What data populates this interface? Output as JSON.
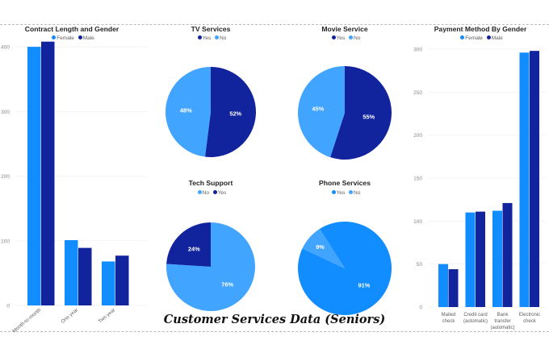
{
  "footer_title": "Customer Services Data (Seniors)",
  "colors": {
    "light": "#41a4ff",
    "dark": "#12239e",
    "mid": "#118dff",
    "accent": "#2ea3ff"
  },
  "charts": {
    "contract": {
      "title": "Contract Length and Gender",
      "legend": [
        "Female",
        "Male"
      ],
      "chart_data": {
        "type": "bar",
        "categories": [
          "Month-to-month",
          "One year",
          "Two year"
        ],
        "series": [
          {
            "name": "Female",
            "values": [
              400,
              101,
              68
            ]
          },
          {
            "name": "Male",
            "values": [
              408,
              89,
              77
            ]
          }
        ],
        "yticks": [
          "400",
          "300",
          "200",
          "100",
          "0"
        ],
        "ylim": [
          0,
          440
        ]
      }
    },
    "tv": {
      "title": "TV Services",
      "legend": [
        "Yes",
        "No"
      ],
      "chart_data": {
        "type": "pie",
        "labels": [
          "Yes",
          "No"
        ],
        "values": [
          52,
          48
        ],
        "value_labels": [
          "52%",
          "48%"
        ]
      }
    },
    "movie": {
      "title": "Movie Service",
      "legend": [
        "Yes",
        "No"
      ],
      "chart_data": {
        "type": "pie",
        "labels": [
          "Yes",
          "No"
        ],
        "values": [
          55,
          45
        ],
        "value_labels": [
          "55%",
          "45%"
        ]
      }
    },
    "tech": {
      "title": "Tech Support",
      "legend": [
        "No",
        "Yes"
      ],
      "chart_data": {
        "type": "pie",
        "labels": [
          "No",
          "Yes"
        ],
        "values": [
          76,
          24
        ],
        "value_labels": [
          "76%",
          "24%"
        ]
      }
    },
    "phone": {
      "title": "Phone Services",
      "legend": [
        "Yes",
        "No"
      ],
      "chart_data": {
        "type": "pie",
        "labels": [
          "Yes",
          "No"
        ],
        "values": [
          91,
          9
        ],
        "value_labels": [
          "91%",
          "9%"
        ]
      }
    },
    "payment": {
      "title": "Payment Method By Gender",
      "legend": [
        "Female",
        "Male"
      ],
      "chart_data": {
        "type": "bar",
        "categories": [
          [
            "Mailed",
            "check"
          ],
          [
            "Credit card",
            "(automatic)"
          ],
          [
            "Bank",
            "transfer",
            "(automatic)"
          ],
          [
            "Electronic",
            "check"
          ]
        ],
        "series": [
          {
            "name": "Female",
            "values": [
              50,
              110,
              112,
              296
            ]
          },
          {
            "name": "Male",
            "values": [
              44,
              111,
              121,
              298
            ]
          }
        ],
        "yticks": [
          "300",
          "250",
          "200",
          "150",
          "100",
          "50",
          "0"
        ],
        "ylim": [
          0,
          300
        ]
      }
    }
  }
}
